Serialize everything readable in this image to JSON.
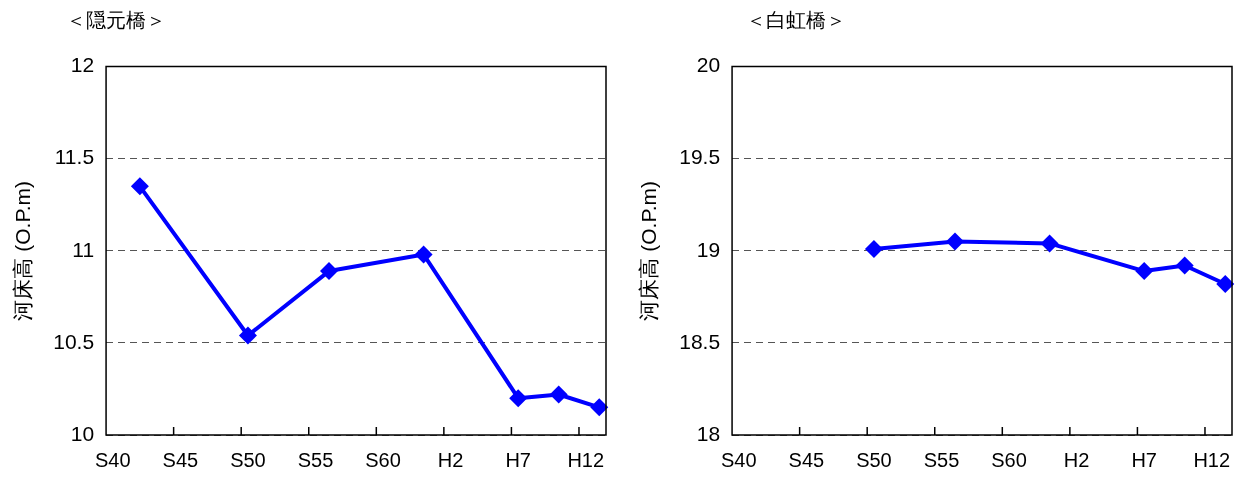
{
  "chart_data": [
    {
      "type": "line",
      "title": "＜隠元橋＞",
      "ylabel": "河床高 (O.P.m)",
      "categories": [
        "S40",
        null,
        null,
        null,
        null,
        "S45",
        null,
        null,
        null,
        null,
        "S50",
        null,
        null,
        null,
        null,
        "S55",
        null,
        null,
        null,
        null,
        "S60",
        null,
        null,
        null,
        null,
        "H2",
        null,
        null,
        null,
        null,
        "H7",
        null,
        null,
        null,
        null,
        "H12",
        null
      ],
      "series": [
        {
          "color": "#0000ff",
          "values": [
            null,
            null,
            11.35,
            null,
            null,
            null,
            null,
            null,
            null,
            null,
            10.54,
            null,
            null,
            null,
            null,
            null,
            10.89,
            null,
            null,
            null,
            null,
            null,
            null,
            10.98,
            null,
            null,
            null,
            null,
            null,
            null,
            10.2,
            null,
            null,
            10.22,
            null,
            null,
            10.15
          ]
        }
      ],
      "ylim": [
        10,
        12
      ],
      "yticks": [
        10,
        10.5,
        11,
        11.5,
        12
      ],
      "grid": "y",
      "marker": "diamond",
      "line_style": "solid"
    },
    {
      "type": "line",
      "title": "＜白虹橋＞",
      "ylabel": "河床高 (O.P.m)",
      "categories": [
        "S40",
        null,
        null,
        null,
        null,
        "S45",
        null,
        null,
        null,
        null,
        "S50",
        null,
        null,
        null,
        null,
        "S55",
        null,
        null,
        null,
        null,
        "S60",
        null,
        null,
        null,
        null,
        "H2",
        null,
        null,
        null,
        null,
        "H7",
        null,
        null,
        null,
        null,
        "H12",
        null
      ],
      "series": [
        {
          "color": "#0000ff",
          "values": [
            null,
            null,
            null,
            null,
            null,
            null,
            null,
            null,
            null,
            null,
            19.01,
            null,
            null,
            null,
            null,
            null,
            19.05,
            null,
            null,
            null,
            null,
            null,
            null,
            19.04,
            null,
            null,
            null,
            null,
            null,
            null,
            18.89,
            null,
            null,
            18.92,
            null,
            null,
            18.82
          ]
        }
      ],
      "ylim": [
        18,
        20
      ],
      "yticks": [
        18,
        18.5,
        19,
        19.5,
        20
      ],
      "grid": "y",
      "marker": "diamond",
      "line_style": "solid"
    }
  ]
}
